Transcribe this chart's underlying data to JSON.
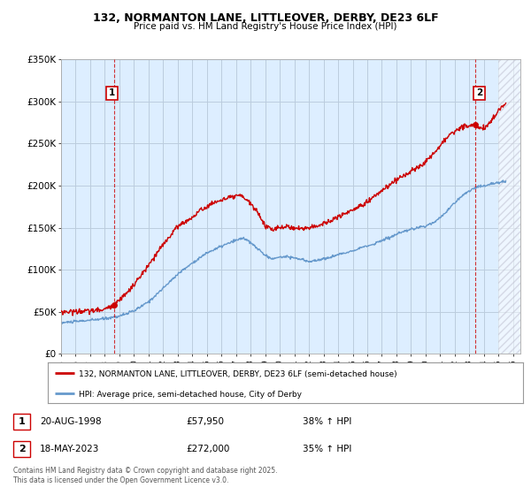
{
  "title_line1": "132, NORMANTON LANE, LITTLEOVER, DERBY, DE23 6LF",
  "title_line2": "Price paid vs. HM Land Registry's House Price Index (HPI)",
  "legend_line1": "132, NORMANTON LANE, LITTLEOVER, DERBY, DE23 6LF (semi-detached house)",
  "legend_line2": "HPI: Average price, semi-detached house, City of Derby",
  "footer": "Contains HM Land Registry data © Crown copyright and database right 2025.\nThis data is licensed under the Open Government Licence v3.0.",
  "annotation1_date": "20-AUG-1998",
  "annotation1_price": "£57,950",
  "annotation1_hpi": "38% ↑ HPI",
  "annotation2_date": "18-MAY-2023",
  "annotation2_price": "£272,000",
  "annotation2_hpi": "35% ↑ HPI",
  "sale1_x": 1998.64,
  "sale1_y": 57950,
  "sale2_x": 2023.38,
  "sale2_y": 272000,
  "line_color_property": "#cc0000",
  "line_color_hpi": "#6699cc",
  "chart_bg_color": "#ddeeff",
  "background_color": "#ffffff",
  "grid_color": "#bbccdd",
  "ylim": [
    0,
    350000
  ],
  "xlim_left": 1995.0,
  "xlim_right": 2026.5,
  "hatch_start": 2025.0,
  "yticks": [
    0,
    50000,
    100000,
    150000,
    200000,
    250000,
    300000,
    350000
  ],
  "ytick_labels": [
    "£0",
    "£50K",
    "£100K",
    "£150K",
    "£200K",
    "£250K",
    "£300K",
    "£350K"
  ],
  "xticks": [
    1995,
    1996,
    1997,
    1998,
    1999,
    2000,
    2001,
    2002,
    2003,
    2004,
    2005,
    2006,
    2007,
    2008,
    2009,
    2010,
    2011,
    2012,
    2013,
    2014,
    2015,
    2016,
    2017,
    2018,
    2019,
    2020,
    2021,
    2022,
    2023,
    2024,
    2025,
    2026
  ]
}
